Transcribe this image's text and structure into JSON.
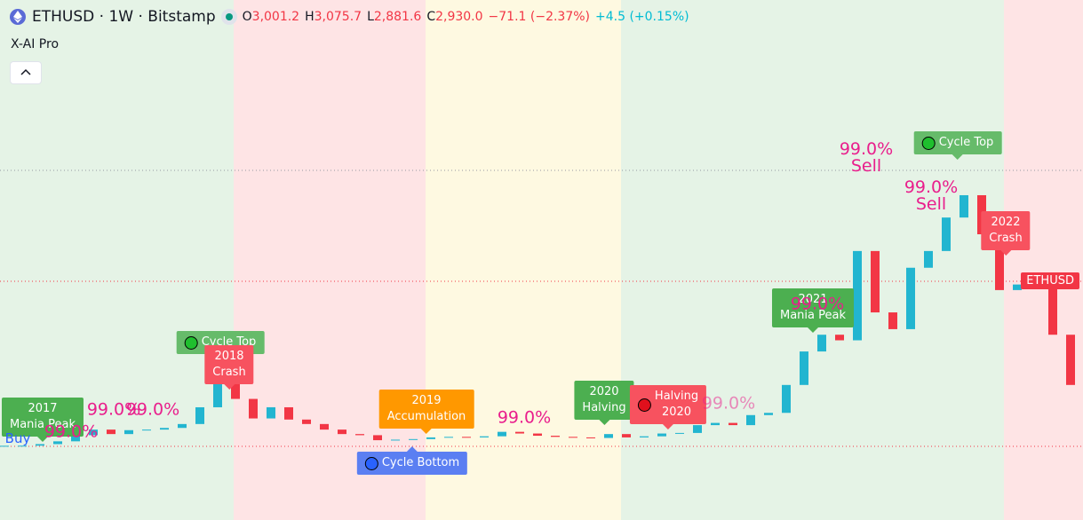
{
  "header": {
    "symbol": "ETHUSD · 1W · Bitstamp",
    "ohlc": [
      {
        "key": "O",
        "value": "3,001.2"
      },
      {
        "key": "H",
        "value": "3,075.7"
      },
      {
        "key": "L",
        "value": "2,881.6"
      },
      {
        "key": "C",
        "value": "2,930.0"
      }
    ],
    "change": "−71.1 (−2.37%)",
    "change_2": "+4.5 (+0.15%)",
    "indicator": "X-AI Pro"
  },
  "price_tag": "ETHUSD",
  "closes": [
    10,
    12,
    40,
    90,
    200,
    300,
    220,
    290,
    300,
    330,
    400,
    700,
    1200,
    850,
    500,
    700,
    480,
    400,
    300,
    220,
    200,
    110,
    120,
    130,
    160,
    170,
    160,
    180,
    260,
    230,
    190,
    170,
    160,
    150,
    220,
    160,
    180,
    230,
    240,
    380,
    420,
    380,
    560,
    600,
    1100,
    1700,
    2000,
    1900,
    3500,
    2400,
    2100,
    3200,
    3500,
    4100,
    4500,
    3800,
    2800,
    2900,
    3000,
    2000,
    1100
  ],
  "annotations": [
    {
      "text": "2017\nMania Peak",
      "color": "#4caf50"
    },
    {
      "text": "Cycle Top",
      "color": "#66bb6a"
    },
    {
      "text": "2018\nCrash",
      "color": "#f7525f"
    },
    {
      "text": "2019\nAccumulation",
      "color": "#ff9800"
    },
    {
      "text": "Cycle Bottom",
      "color": "#5b7ff2"
    },
    {
      "text": "2020\nHalving",
      "color": "#4caf50"
    },
    {
      "text": "Halving\n2020",
      "color": "#f7525f"
    },
    {
      "text": "2021\nMania Peak",
      "color": "#4caf50"
    },
    {
      "text": "Cycle Top",
      "color": "#66bb6a"
    },
    {
      "text": "2022\nCrash",
      "color": "#f7525f"
    }
  ],
  "signals": [
    "99.0%\nSell",
    "99.0%\nSell",
    "99.0%",
    "99.0%",
    "99.0%",
    "99.0%",
    "99.0%",
    "99.0%"
  ],
  "buy": "Buy"
}
